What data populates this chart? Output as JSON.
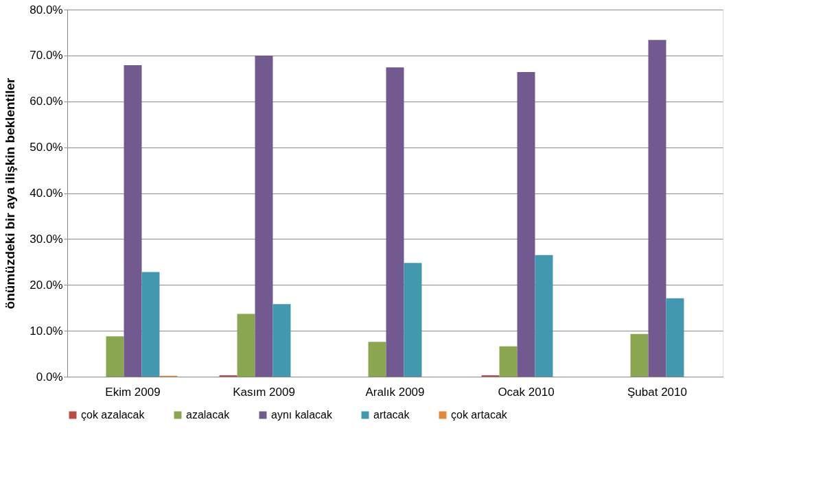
{
  "chart_data": {
    "type": "bar",
    "ylabel": "önümüzdeki bir aya ilişkin beklentiler",
    "categories": [
      "Ekim 2009",
      "Kasım 2009",
      "Aralık 2009",
      "Ocak 2010",
      "Şubat 2010"
    ],
    "series": [
      {
        "name": "çok azalacak",
        "color": "#be4b48",
        "values": [
          0,
          0.3,
          0,
          0.3,
          0
        ]
      },
      {
        "name": "azalacak",
        "color": "#8aa64e",
        "values": [
          8.8,
          13.7,
          7.6,
          6.6,
          9.3
        ]
      },
      {
        "name": "aynı kalacak",
        "color": "#72598f",
        "values": [
          67.9,
          70.0,
          67.4,
          66.4,
          73.4
        ]
      },
      {
        "name": "artacak",
        "color": "#4298ae",
        "values": [
          22.8,
          15.8,
          24.8,
          26.5,
          17.1
        ]
      },
      {
        "name": "çok artacak",
        "color": "#e08a37",
        "values": [
          0.2,
          0,
          0,
          0,
          0
        ]
      }
    ],
    "ylim": [
      0,
      80
    ],
    "yticks": [
      {
        "value": 0,
        "label": "0.0%"
      },
      {
        "value": 10,
        "label": "10.0%"
      },
      {
        "value": 20,
        "label": "20.0%"
      },
      {
        "value": 30,
        "label": "30.0%"
      },
      {
        "value": 40,
        "label": "40.0%"
      },
      {
        "value": 50,
        "label": "50.0%"
      },
      {
        "value": 60,
        "label": "60.0%"
      },
      {
        "value": 70,
        "label": "70.0%"
      },
      {
        "value": 80,
        "label": "80.0%"
      }
    ],
    "grid": "y",
    "legend": "bottom"
  }
}
